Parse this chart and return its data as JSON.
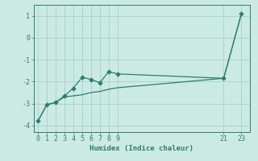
{
  "xlabel": "Humidex (Indice chaleur)",
  "bg_color": "#cceae4",
  "grid_color": "#aad4cc",
  "line_color": "#2e7d6e",
  "line1_x": [
    0,
    1,
    2,
    3,
    4,
    5,
    6,
    7,
    8,
    9,
    21,
    23
  ],
  "line1_y": [
    -3.8,
    -3.05,
    -2.95,
    -2.65,
    -2.3,
    -1.8,
    -1.9,
    -2.05,
    -1.55,
    -1.65,
    -1.85,
    1.1
  ],
  "line2_x": [
    0,
    1,
    2,
    3,
    4,
    5,
    6,
    7,
    8,
    9,
    21,
    23
  ],
  "line2_y": [
    -3.8,
    -3.05,
    -2.95,
    -2.7,
    -2.65,
    -2.6,
    -2.5,
    -2.45,
    -2.35,
    -2.28,
    -1.85,
    1.1
  ],
  "yticks": [
    -4,
    -3,
    -2,
    -1,
    0,
    1
  ],
  "xticks": [
    0,
    1,
    2,
    3,
    4,
    5,
    6,
    7,
    8,
    9,
    21,
    23
  ],
  "xlim": [
    -0.5,
    24.0
  ],
  "ylim": [
    -4.3,
    1.5
  ],
  "marker": "D",
  "marker_size": 2.8
}
